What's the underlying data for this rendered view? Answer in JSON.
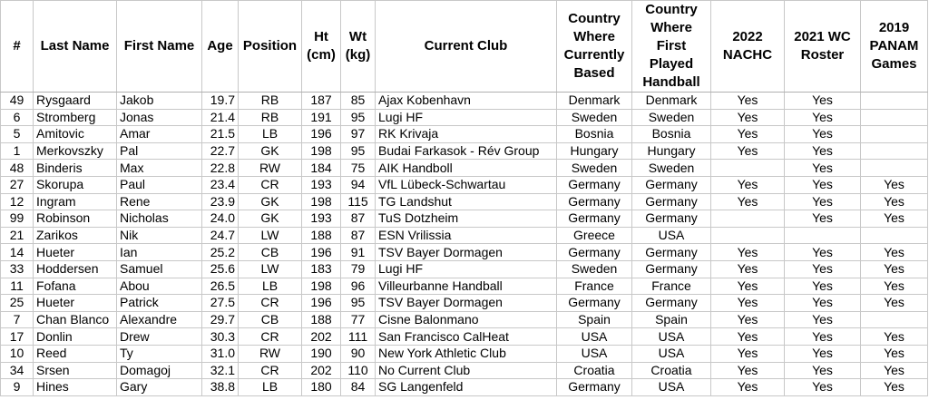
{
  "headers": [
    "#",
    "Last Name",
    "First Name",
    "Age",
    "Position",
    "Ht (cm)",
    "Wt (kg)",
    "Current Club",
    "Country Where Currently Based",
    "Country Where First Played Handball",
    "2022 NACHC",
    "2021 WC Roster",
    "2019 PANAM Games"
  ],
  "rows": [
    [
      "49",
      "Rysgaard",
      "Jakob",
      "19.7",
      "RB",
      "187",
      "85",
      "Ajax Kobenhavn",
      "Denmark",
      "Denmark",
      "Yes",
      "Yes",
      ""
    ],
    [
      "6",
      "Stromberg",
      "Jonas",
      "21.4",
      "RB",
      "191",
      "95",
      "Lugi HF",
      "Sweden",
      "Sweden",
      "Yes",
      "Yes",
      ""
    ],
    [
      "5",
      "Amitovic",
      "Amar",
      "21.5",
      "LB",
      "196",
      "97",
      "RK Krivaja",
      "Bosnia",
      "Bosnia",
      "Yes",
      "Yes",
      ""
    ],
    [
      "1",
      "Merkovszky",
      "Pal",
      "22.7",
      "GK",
      "198",
      "95",
      "Budai Farkasok - Rév Group",
      "Hungary",
      "Hungary",
      "Yes",
      "Yes",
      ""
    ],
    [
      "48",
      "Binderis",
      "Max",
      "22.8",
      "RW",
      "184",
      "75",
      "AIK Handboll",
      "Sweden",
      "Sweden",
      "",
      "Yes",
      ""
    ],
    [
      "27",
      "Skorupa",
      "Paul",
      "23.4",
      "CR",
      "193",
      "94",
      "VfL Lübeck-Schwartau",
      "Germany",
      "Germany",
      "Yes",
      "Yes",
      "Yes"
    ],
    [
      "12",
      "Ingram",
      "Rene",
      "23.9",
      "GK",
      "198",
      "115",
      "TG Landshut",
      "Germany",
      "Germany",
      "Yes",
      "Yes",
      "Yes"
    ],
    [
      "99",
      "Robinson",
      "Nicholas",
      "24.0",
      "GK",
      "193",
      "87",
      "TuS Dotzheim",
      "Germany",
      "Germany",
      "",
      "Yes",
      "Yes"
    ],
    [
      "21",
      "Zarikos",
      "Nik",
      "24.7",
      "LW",
      "188",
      "87",
      "ESN Vrilissia",
      "Greece",
      "USA",
      "",
      "",
      ""
    ],
    [
      "14",
      "Hueter",
      "Ian",
      "25.2",
      "CB",
      "196",
      "91",
      "TSV Bayer Dormagen",
      "Germany",
      "Germany",
      "Yes",
      "Yes",
      "Yes"
    ],
    [
      "33",
      "Hoddersen",
      "Samuel",
      "25.6",
      "LW",
      "183",
      "79",
      "Lugi HF",
      "Sweden",
      "Germany",
      "Yes",
      "Yes",
      "Yes"
    ],
    [
      "11",
      "Fofana",
      "Abou",
      "26.5",
      "LB",
      "198",
      "96",
      "Villeurbanne Handball",
      "France",
      "France",
      "Yes",
      "Yes",
      "Yes"
    ],
    [
      "25",
      "Hueter",
      "Patrick",
      "27.5",
      "CR",
      "196",
      "95",
      "TSV Bayer Dormagen",
      "Germany",
      "Germany",
      "Yes",
      "Yes",
      "Yes"
    ],
    [
      "7",
      "Chan Blanco",
      "Alexandre",
      "29.7",
      "CB",
      "188",
      "77",
      "Cisne Balonmano",
      "Spain",
      "Spain",
      "Yes",
      "Yes",
      ""
    ],
    [
      "17",
      "Donlin",
      "Drew",
      "30.3",
      "CR",
      "202",
      "111",
      "San Francisco CalHeat",
      "USA",
      "USA",
      "Yes",
      "Yes",
      "Yes"
    ],
    [
      "10",
      "Reed",
      "Ty",
      "31.0",
      "RW",
      "190",
      "90",
      "New York Athletic Club",
      "USA",
      "USA",
      "Yes",
      "Yes",
      "Yes"
    ],
    [
      "34",
      "Srsen",
      "Domagoj",
      "32.1",
      "CR",
      "202",
      "110",
      "No Current Club",
      "Croatia",
      "Croatia",
      "Yes",
      "Yes",
      "Yes"
    ],
    [
      "9",
      "Hines",
      "Gary",
      "38.8",
      "LB",
      "180",
      "84",
      "SG Langenfeld",
      "Germany",
      "USA",
      "Yes",
      "Yes",
      "Yes"
    ]
  ]
}
